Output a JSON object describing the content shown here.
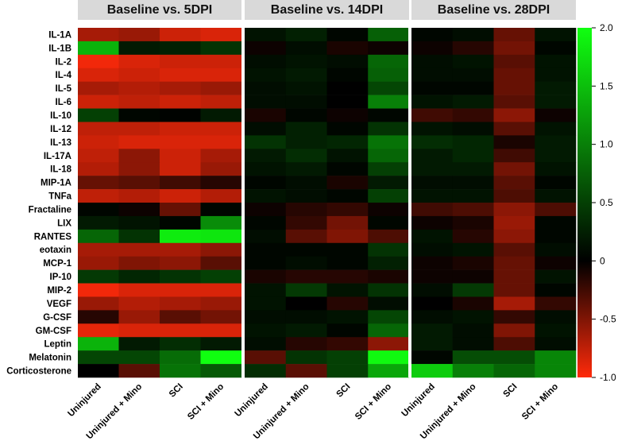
{
  "chart_data": {
    "type": "heatmap",
    "panels": [
      {
        "title": "Baseline vs. 5DPI",
        "values": [
          [
            -0.65,
            -0.6,
            -0.8,
            -0.85
          ],
          [
            1.4,
            0.2,
            0.25,
            0.4
          ],
          [
            -0.95,
            -0.85,
            -0.8,
            -0.8
          ],
          [
            -0.85,
            -0.8,
            -0.85,
            -0.85
          ],
          [
            -0.65,
            -0.7,
            -0.65,
            -0.6
          ],
          [
            -0.8,
            -0.75,
            -0.8,
            -0.75
          ],
          [
            0.5,
            0.05,
            0.02,
            0.2
          ],
          [
            -0.75,
            -0.75,
            -0.8,
            -0.8
          ],
          [
            -0.8,
            -0.85,
            -0.85,
            -0.85
          ],
          [
            -0.75,
            -0.55,
            -0.8,
            -0.65
          ],
          [
            -0.7,
            -0.55,
            -0.8,
            -0.6
          ],
          [
            -0.4,
            -0.35,
            -0.25,
            -0.15
          ],
          [
            -0.75,
            -0.7,
            -0.8,
            -0.7
          ],
          [
            0.05,
            -0.05,
            -0.4,
            0.05
          ],
          [
            0.2,
            0.15,
            0.05,
            1.1
          ],
          [
            0.8,
            0.4,
            1.85,
            1.8
          ],
          [
            -0.65,
            -0.65,
            -0.65,
            -0.55
          ],
          [
            -0.6,
            -0.5,
            -0.55,
            -0.35
          ],
          [
            0.45,
            0.3,
            0.4,
            0.5
          ],
          [
            -0.95,
            -0.85,
            -0.85,
            -0.85
          ],
          [
            -0.6,
            -0.7,
            -0.65,
            -0.6
          ],
          [
            -0.15,
            -0.6,
            -0.35,
            -0.45
          ],
          [
            -0.9,
            -0.85,
            -0.85,
            -0.85
          ],
          [
            1.4,
            0.2,
            0.35,
            0.2
          ],
          [
            0.55,
            0.55,
            0.85,
            2.0
          ],
          [
            0.0,
            -0.35,
            0.9,
            0.7
          ]
        ]
      },
      {
        "title": "Baseline vs. 14DPI",
        "values": [
          [
            0.15,
            0.25,
            0.05,
            0.75
          ],
          [
            -0.05,
            0.1,
            -0.1,
            -0.05
          ],
          [
            0.1,
            0.15,
            0.1,
            0.8
          ],
          [
            0.15,
            0.2,
            0.05,
            0.75
          ],
          [
            0.1,
            0.15,
            0.0,
            0.55
          ],
          [
            0.1,
            0.1,
            0.0,
            1.0
          ],
          [
            -0.1,
            0.05,
            -0.05,
            0.05
          ],
          [
            0.1,
            0.25,
            0.05,
            0.4
          ],
          [
            0.4,
            0.25,
            0.3,
            0.9
          ],
          [
            0.2,
            0.35,
            0.15,
            0.8
          ],
          [
            0.15,
            0.2,
            0.05,
            0.5
          ],
          [
            0.05,
            0.1,
            -0.1,
            0.2
          ],
          [
            0.15,
            0.1,
            0.05,
            0.5
          ],
          [
            -0.05,
            -0.15,
            -0.2,
            -0.05
          ],
          [
            0.05,
            -0.2,
            -0.45,
            0.05
          ],
          [
            0.1,
            -0.35,
            -0.5,
            -0.3
          ],
          [
            0.05,
            0.05,
            0.05,
            0.4
          ],
          [
            0.05,
            0.1,
            0.05,
            0.25
          ],
          [
            -0.1,
            -0.15,
            -0.15,
            -0.1
          ],
          [
            0.15,
            0.45,
            0.15,
            0.4
          ],
          [
            0.15,
            0.0,
            -0.15,
            0.1
          ],
          [
            0.1,
            0.1,
            0.15,
            0.55
          ],
          [
            0.15,
            0.2,
            0.05,
            0.8
          ],
          [
            0.1,
            -0.15,
            -0.2,
            -0.55
          ],
          [
            -0.35,
            0.4,
            0.5,
            1.95
          ],
          [
            0.35,
            -0.35,
            0.5,
            1.3
          ]
        ]
      },
      {
        "title": "Baseline vs. 28DPI",
        "values": [
          [
            0.05,
            0.1,
            -0.4,
            0.15
          ],
          [
            -0.05,
            -0.15,
            -0.45,
            0.05
          ],
          [
            0.1,
            0.15,
            -0.35,
            0.15
          ],
          [
            0.1,
            0.1,
            -0.4,
            0.15
          ],
          [
            0.05,
            0.05,
            -0.4,
            0.2
          ],
          [
            0.15,
            0.2,
            -0.35,
            0.2
          ],
          [
            -0.25,
            -0.2,
            -0.55,
            -0.05
          ],
          [
            0.15,
            0.1,
            -0.35,
            0.15
          ],
          [
            0.35,
            0.3,
            -0.1,
            0.2
          ],
          [
            0.2,
            0.3,
            -0.25,
            0.2
          ],
          [
            0.2,
            0.2,
            -0.45,
            0.15
          ],
          [
            0.1,
            0.1,
            -0.35,
            0.05
          ],
          [
            0.15,
            0.15,
            -0.3,
            0.15
          ],
          [
            -0.25,
            -0.3,
            -0.55,
            -0.3
          ],
          [
            -0.05,
            -0.1,
            -0.6,
            0.05
          ],
          [
            0.15,
            -0.15,
            -0.55,
            0.05
          ],
          [
            0.1,
            0.15,
            -0.35,
            0.1
          ],
          [
            -0.05,
            -0.1,
            -0.4,
            -0.05
          ],
          [
            -0.05,
            -0.05,
            -0.4,
            0.15
          ],
          [
            0.1,
            0.45,
            -0.4,
            0.05
          ],
          [
            0.0,
            -0.1,
            -0.65,
            -0.2
          ],
          [
            0.1,
            0.15,
            -0.2,
            0.1
          ],
          [
            0.2,
            0.1,
            -0.5,
            0.15
          ],
          [
            0.2,
            0.1,
            -0.3,
            0.1
          ],
          [
            0.05,
            0.6,
            0.6,
            1.05
          ],
          [
            1.6,
            1.0,
            0.8,
            1.05
          ]
        ]
      }
    ],
    "rows": [
      "IL-1A",
      "IL-1B",
      "IL-2",
      "IL-4",
      "IL-5",
      "IL-6",
      "IL-10",
      "IL-12",
      "IL-13",
      "IL-17A",
      "IL-18",
      "MIP-1A",
      "TNFa",
      "Fractaline",
      "LIX",
      "RANTES",
      "eotaxin",
      "MCP-1",
      "IP-10",
      "MIP-2",
      "VEGF",
      "G-CSF",
      "GM-CSF",
      "Leptin",
      "Melatonin",
      "Corticosterone"
    ],
    "columns": [
      "Uninjured",
      "Uninjured + Mino",
      "SCI",
      "SCI + Mino"
    ],
    "colorbar": {
      "range": [
        -1.0,
        2.0
      ],
      "ticks": [
        2.0,
        1.5,
        1.0,
        0.5,
        0,
        -0.5,
        -1.0
      ],
      "tick_labels": [
        "2.0",
        "1.5",
        "1.0",
        "0.5",
        "0",
        "-0.5",
        "-1.0"
      ],
      "colors": {
        "low": "#ff2a0a",
        "mid": "#000000",
        "high": "#10ff10"
      }
    }
  }
}
